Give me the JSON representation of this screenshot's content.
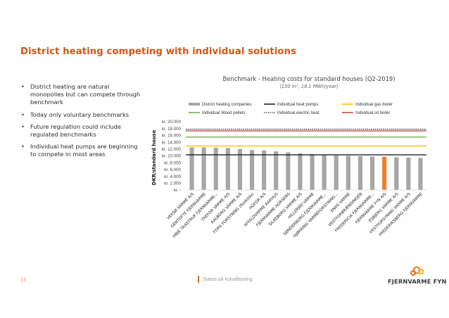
{
  "slide": {
    "title": "District heating competing with individual solutions",
    "bullets": [
      "District heating are natural monopolies but can compete through benchmark",
      "Today only voluntary benchmarks",
      "Future regulation could include regulated benchmarks",
      "Individual heat pumps are beginning to compete in most areas"
    ]
  },
  "footer": {
    "page_number": "13",
    "text": "Status på kuludfasning"
  },
  "logo": {
    "text": "FJERNVARME FYN",
    "icon": "rings-logo-icon"
  },
  "colors": {
    "title": "#d4551a",
    "bar": "#a6a6a6",
    "highlight_bar": "#ed7d31",
    "heat_pumps": "#1f1f1f",
    "electric": "#1f1f1f",
    "gas": "#ffc000",
    "wood": "#70ad47",
    "oil": "#c0504d"
  },
  "chart_data": {
    "type": "bar",
    "title": "Benchmark - Heating costs for standard houses (Q2-2019)",
    "subtitle": "(130 m², 18.1 MWh/year)",
    "ylabel": "DKR/standard house",
    "xlabel": "",
    "ylim": [
      0,
      20000
    ],
    "yticks": [
      {
        "value": 20000,
        "label": "kr. 20.000"
      },
      {
        "value": 18000,
        "label": "kr. 18.000"
      },
      {
        "value": 16000,
        "label": "kr. 16.000"
      },
      {
        "value": 14000,
        "label": "kr. 14.000"
      },
      {
        "value": 12000,
        "label": "kr. 12.000"
      },
      {
        "value": 10000,
        "label": "kr. 10.000"
      },
      {
        "value": 8000,
        "label": "kr. 8.000"
      },
      {
        "value": 6000,
        "label": "kr. 6.000"
      },
      {
        "value": 4000,
        "label": "kr. 4.000"
      },
      {
        "value": 2000,
        "label": "kr. 2.000"
      },
      {
        "value": 0,
        "label": "kr. -"
      }
    ],
    "grid": false,
    "legend_position": "top",
    "categories": [
      "VEKSØ VARME A/S",
      "GENTOFTE FJERNVARME",
      "HØJE TAASTRUP FJERNVARME...",
      "TREFOR VARME A/S",
      "AALBORG VARME A/S",
      "FORS FORSYNING (Roskilde)",
      "HOFOR A/S",
      "AFFALDVARME AARHUS",
      "FJERNVARME HORSENS",
      "SILKEBORG VARME A/S",
      "HILLERØD VARME",
      "SØNDERBORG FJERNVARME...",
      "HJØRRING VARMEFORSYNING...",
      "ENIIG VARME",
      "VESTFORBRÆNDINGEN",
      "FREDERICIA FJERNVARME...",
      "FJERNVARME FYN A/S",
      "ESBJERG VARME A/S",
      "VESTFORSYNING VARME A/S",
      "FREDERIKSBERG FJERNVARME"
    ],
    "series": [
      {
        "name": "District heating companies",
        "type": "bar",
        "values": [
          12500,
          12500,
          12400,
          12300,
          12000,
          11700,
          11600,
          11300,
          11000,
          10700,
          10500,
          10200,
          10100,
          10000,
          9900,
          9800,
          9700,
          9600,
          9500,
          9400
        ],
        "highlight_index": 16
      },
      {
        "name": "Individual heat pumps",
        "type": "line",
        "style": "solid",
        "value": 10300
      },
      {
        "name": "Individual gas boiler",
        "type": "line",
        "style": "solid",
        "value": 12900
      },
      {
        "name": "Individual Wood pellets",
        "type": "line",
        "style": "solid",
        "value": 15500
      },
      {
        "name": "Individual electric heat",
        "type": "line",
        "style": "dotted",
        "value": 17800
      },
      {
        "name": "Individual oil boiler",
        "type": "line",
        "style": "solid",
        "value": 17300
      }
    ]
  }
}
